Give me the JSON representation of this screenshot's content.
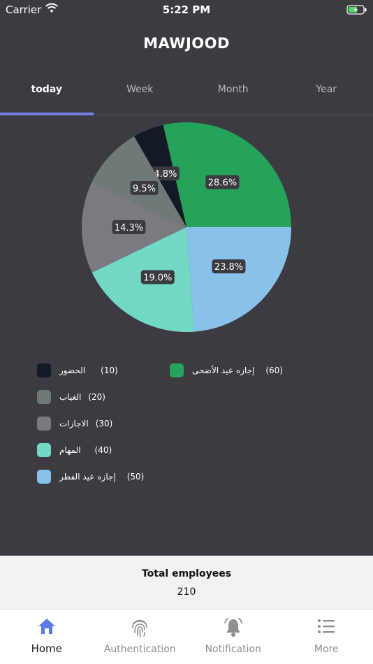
{
  "status_bar": {
    "carrier": "Carrier",
    "time": "5:22 PM"
  },
  "app": {
    "title": "MAWJOOD"
  },
  "tabs": [
    {
      "label": "today",
      "active": true
    },
    {
      "label": "Week",
      "active": false
    },
    {
      "label": "Month",
      "active": false
    },
    {
      "label": "Year",
      "active": false
    }
  ],
  "chart_data": {
    "type": "pie",
    "slices": [
      {
        "label": "إجازه عيد الأضحى",
        "value": 60,
        "percent": "28.6%",
        "color": "#25a35a"
      },
      {
        "label": "الحضور",
        "value": 10,
        "percent": "4.8%",
        "color": "#141a24"
      },
      {
        "label": "الغياب",
        "value": 20,
        "percent": "9.5%",
        "color": "#6f7a78"
      },
      {
        "label": "الاجازات",
        "value": 30,
        "percent": "14.3%",
        "color": "#7b7b7f"
      },
      {
        "label": "المهام",
        "value": 40,
        "percent": "19.0%",
        "color": "#72d9c4"
      },
      {
        "label": "إجازه عيد الفطر",
        "value": 50,
        "percent": "23.8%",
        "color": "#88c2ea"
      }
    ]
  },
  "legend": [
    {
      "value_text": "(10)",
      "label": "الحضور",
      "color": "#141a24"
    },
    {
      "value_text": "(20)",
      "label": "الغياب",
      "color": "#6f7a78"
    },
    {
      "value_text": "(30)",
      "label": "الاجازات",
      "color": "#7b7b7f"
    },
    {
      "value_text": "(40)",
      "label": "المهام",
      "color": "#72d9c4"
    },
    {
      "value_text": "(50)",
      "label": "إجازه عيد الفطر",
      "color": "#88c2ea"
    },
    {
      "value_text": "(60)",
      "label": "إجازه عيد الأضحى",
      "color": "#25a35a"
    }
  ],
  "summary": {
    "total_label": "Total employees",
    "total_value": "210"
  },
  "tabbar": [
    {
      "label": "Home",
      "icon": "home-icon",
      "active": true
    },
    {
      "label": "Authentication",
      "icon": "fingerprint-icon",
      "active": false
    },
    {
      "label": "Notification",
      "icon": "bell-icon",
      "active": false
    },
    {
      "label": "More",
      "icon": "list-icon",
      "active": false
    }
  ],
  "colors": {
    "accent": "#6f7fe6",
    "background": "#3c3b41"
  }
}
